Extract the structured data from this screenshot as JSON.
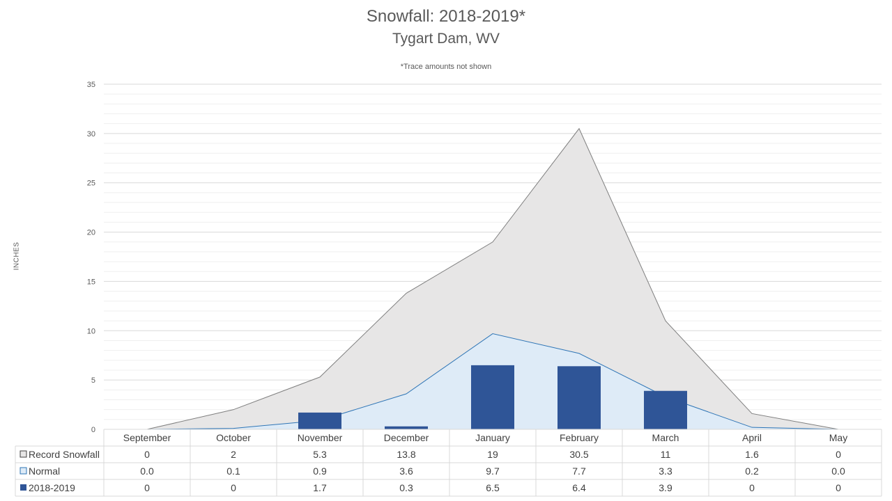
{
  "chart_data": {
    "type": "bar",
    "title": "Snowfall: 2018-2019*",
    "subtitle": "Tygart Dam, WV",
    "note": "*Trace amounts not shown",
    "ylabel": "INCHES",
    "ylim": [
      0,
      35
    ],
    "yticks": [
      "0",
      "5",
      "10",
      "15",
      "20",
      "25",
      "30",
      "35"
    ],
    "grid": true,
    "legend": "data-table",
    "categories": [
      "September",
      "October",
      "November",
      "December",
      "January",
      "February",
      "March",
      "April",
      "May"
    ],
    "series": [
      {
        "name": "Record Snowfall",
        "type": "area",
        "color": "#e7e6e6",
        "line_color": "#7f7f7f",
        "values": [
          0,
          2,
          5.3,
          13.8,
          19,
          30.5,
          11,
          1.6,
          0
        ],
        "table_values": [
          "0",
          "2",
          "5.3",
          "13.8",
          "19",
          "30.5",
          "11",
          "1.6",
          "0"
        ]
      },
      {
        "name": "Normal",
        "type": "area",
        "color": "#deebf7",
        "line_color": "#2e75b6",
        "values": [
          0.0,
          0.1,
          0.9,
          3.6,
          9.7,
          7.7,
          3.3,
          0.2,
          0.0
        ],
        "table_values": [
          "0.0",
          "0.1",
          "0.9",
          "3.6",
          "9.7",
          "7.7",
          "3.3",
          "0.2",
          "0.0"
        ]
      },
      {
        "name": "2018-2019",
        "type": "bar",
        "color": "#2f5597",
        "values": [
          0,
          0,
          1.7,
          0.3,
          6.5,
          6.4,
          3.9,
          0,
          0
        ],
        "table_values": [
          "0",
          "0",
          "1.7",
          "0.3",
          "6.5",
          "6.4",
          "3.9",
          "0",
          "0"
        ]
      }
    ]
  }
}
